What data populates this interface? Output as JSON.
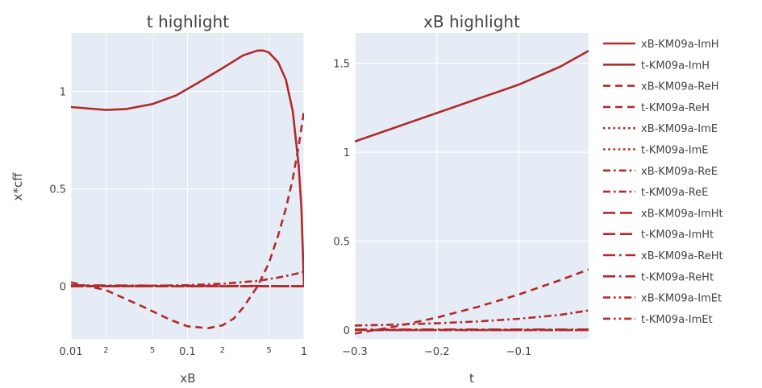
{
  "chart_data": [
    {
      "type": "line",
      "title": "t highlight",
      "xlabel": "xB",
      "ylabel": "x*cff",
      "x_scale": "log",
      "xlim": [
        0.01,
        1
      ],
      "ylim": [
        -0.27,
        1.3
      ],
      "x_ticks": [
        {
          "value": 0.01,
          "label": "0.01",
          "minor": false
        },
        {
          "value": 0.02,
          "label": "2",
          "minor": true
        },
        {
          "value": 0.05,
          "label": "5",
          "minor": true
        },
        {
          "value": 0.1,
          "label": "0.1",
          "minor": false
        },
        {
          "value": 0.2,
          "label": "2",
          "minor": true
        },
        {
          "value": 0.5,
          "label": "5",
          "minor": true
        },
        {
          "value": 1,
          "label": "1",
          "minor": false
        }
      ],
      "y_ticks": [
        {
          "value": 0,
          "label": "0"
        },
        {
          "value": 0.5,
          "label": "0.5"
        },
        {
          "value": 1,
          "label": "1"
        }
      ],
      "series": [
        {
          "name": "xB-KM09a-ImH",
          "dash": "solid",
          "x": [
            0.01,
            0.02,
            0.03,
            0.05,
            0.08,
            0.12,
            0.2,
            0.3,
            0.4,
            0.45,
            0.5,
            0.6,
            0.7,
            0.8,
            0.9,
            0.95,
            1.0
          ],
          "y": [
            0.92,
            0.905,
            0.91,
            0.935,
            0.98,
            1.04,
            1.12,
            1.185,
            1.21,
            1.21,
            1.2,
            1.15,
            1.06,
            0.9,
            0.62,
            0.4,
            0.0
          ]
        },
        {
          "name": "xB-KM09a-ReH",
          "dash": "dash",
          "x": [
            0.01,
            0.02,
            0.04,
            0.07,
            0.1,
            0.15,
            0.2,
            0.25,
            0.3,
            0.4,
            0.5,
            0.6,
            0.7,
            0.8,
            0.9,
            1.0
          ],
          "y": [
            0.02,
            -0.02,
            -0.1,
            -0.17,
            -0.205,
            -0.215,
            -0.2,
            -0.165,
            -0.11,
            0.0,
            0.12,
            0.26,
            0.4,
            0.55,
            0.72,
            0.9
          ]
        },
        {
          "name": "xB-KM09a-ImE",
          "dash": "dot",
          "x": [
            0.01,
            0.1,
            0.3,
            0.6,
            1.0
          ],
          "y": [
            0.0,
            0.0,
            0.0,
            0.0,
            0.0
          ]
        },
        {
          "name": "xB-KM09a-ReE",
          "dash": "dashdot",
          "x": [
            0.01,
            0.05,
            0.1,
            0.2,
            0.4,
            0.6,
            0.8,
            1.0
          ],
          "y": [
            0.0,
            0.003,
            0.006,
            0.013,
            0.028,
            0.045,
            0.06,
            0.075
          ]
        },
        {
          "name": "xB-KM09a-ImHt",
          "dash": "longdash",
          "x": [
            0.01,
            0.1,
            0.3,
            0.6,
            1.0
          ],
          "y": [
            0.0,
            0.0,
            0.0,
            0.0,
            0.0
          ]
        },
        {
          "name": "xB-KM09a-ReHt",
          "dash": "longdashdot",
          "x": [
            0.01,
            0.1,
            0.3,
            0.6,
            1.0
          ],
          "y": [
            0.005,
            0.003,
            0.002,
            0.001,
            0.0
          ]
        },
        {
          "name": "xB-KM09a-ImEt",
          "dash": "dashdotdot",
          "x": [
            0.01,
            0.1,
            0.3,
            0.6,
            1.0
          ],
          "y": [
            0.0,
            0.0,
            0.0,
            0.0,
            0.0
          ]
        }
      ]
    },
    {
      "type": "line",
      "title": "xB highlight",
      "xlabel": "t",
      "ylabel": "",
      "x_scale": "linear",
      "xlim": [
        -0.3,
        -0.015
      ],
      "ylim": [
        -0.05,
        1.67
      ],
      "x_ticks": [
        {
          "value": -0.3,
          "label": "−0.3"
        },
        {
          "value": -0.2,
          "label": "−0.2"
        },
        {
          "value": -0.1,
          "label": "−0.1"
        }
      ],
      "y_ticks": [
        {
          "value": 0,
          "label": "0"
        },
        {
          "value": 0.5,
          "label": "0.5"
        },
        {
          "value": 1,
          "label": "1"
        },
        {
          "value": 1.5,
          "label": "1.5"
        }
      ],
      "series": [
        {
          "name": "t-KM09a-ImH",
          "dash": "solid",
          "x": [
            -0.3,
            -0.25,
            -0.2,
            -0.15,
            -0.1,
            -0.05,
            -0.015
          ],
          "y": [
            1.06,
            1.14,
            1.22,
            1.3,
            1.38,
            1.48,
            1.57
          ]
        },
        {
          "name": "t-KM09a-ReH",
          "dash": "dash",
          "x": [
            -0.3,
            -0.25,
            -0.2,
            -0.15,
            -0.1,
            -0.05,
            -0.015
          ],
          "y": [
            -0.02,
            0.02,
            0.07,
            0.13,
            0.2,
            0.28,
            0.34
          ]
        },
        {
          "name": "t-KM09a-ImE",
          "dash": "dot",
          "x": [
            -0.3,
            -0.015
          ],
          "y": [
            0.0,
            0.0
          ]
        },
        {
          "name": "t-KM09a-ReE",
          "dash": "dashdot",
          "x": [
            -0.3,
            -0.25,
            -0.2,
            -0.15,
            -0.1,
            -0.05,
            -0.015
          ],
          "y": [
            0.025,
            0.03,
            0.038,
            0.048,
            0.063,
            0.085,
            0.11
          ]
        },
        {
          "name": "t-KM09a-ImHt",
          "dash": "longdash",
          "x": [
            -0.3,
            -0.015
          ],
          "y": [
            0.0,
            0.0
          ]
        },
        {
          "name": "t-KM09a-ReHt",
          "dash": "longdashdot",
          "x": [
            -0.3,
            -0.015
          ],
          "y": [
            0.003,
            0.003
          ]
        },
        {
          "name": "t-KM09a-ImEt",
          "dash": "dashdotdot",
          "x": [
            -0.3,
            -0.015
          ],
          "y": [
            0.0,
            0.0
          ]
        }
      ]
    }
  ],
  "legend": {
    "placement": "right",
    "color": "#b22a2a",
    "entries": [
      {
        "label": "xB-KM09a-ImH",
        "dash": "solid"
      },
      {
        "label": "t-KM09a-ImH",
        "dash": "solid"
      },
      {
        "label": "xB-KM09a-ReH",
        "dash": "dash"
      },
      {
        "label": "t-KM09a-ReH",
        "dash": "dash"
      },
      {
        "label": "xB-KM09a-ImE",
        "dash": "dot"
      },
      {
        "label": "t-KM09a-ImE",
        "dash": "dot"
      },
      {
        "label": "xB-KM09a-ReE",
        "dash": "dashdot"
      },
      {
        "label": "t-KM09a-ReE",
        "dash": "dashdot"
      },
      {
        "label": "xB-KM09a-ImHt",
        "dash": "longdash"
      },
      {
        "label": "t-KM09a-ImHt",
        "dash": "longdash"
      },
      {
        "label": "xB-KM09a-ReHt",
        "dash": "longdashdot"
      },
      {
        "label": "t-KM09a-ReHt",
        "dash": "longdashdot"
      },
      {
        "label": "xB-KM09a-ImEt",
        "dash": "dashdotdot"
      },
      {
        "label": "t-KM09a-ImEt",
        "dash": "dashdotdot"
      }
    ]
  },
  "colors": {
    "line": "#b22a2a",
    "plot_bg": "#e5ecf6",
    "grid": "#ffffff",
    "text": "#444444"
  }
}
